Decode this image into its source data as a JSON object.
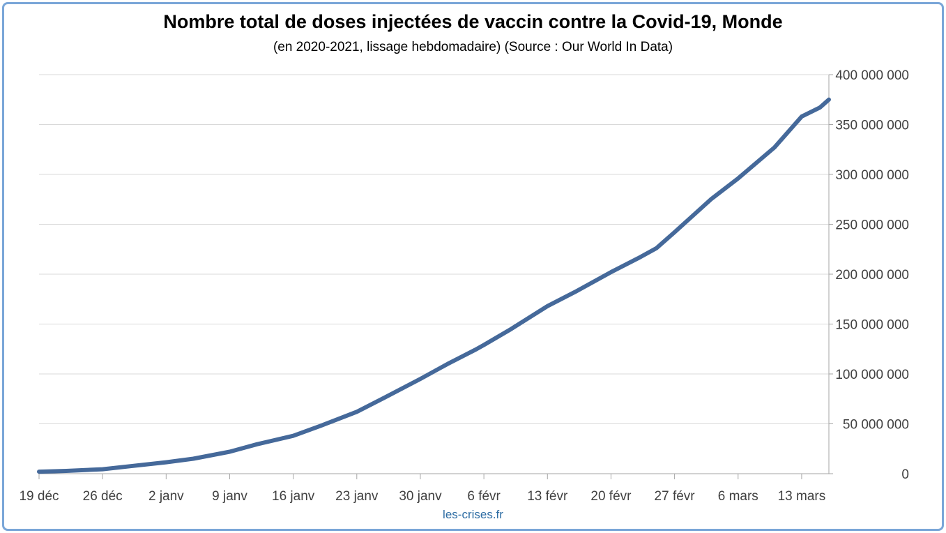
{
  "title": "Nombre total de doses injectées de vaccin contre la Covid-19, Monde",
  "subtitle": "(en 2020-2021, lissage hebdomadaire) (Source : Our World In Data)",
  "credit": "les-crises.fr",
  "colors": {
    "line": "#45699a",
    "grid": "#d9d9d9",
    "axis": "#a6a6a6",
    "frame": "#7aa6d8",
    "credit": "#2e6da4"
  },
  "chart_data": {
    "type": "line",
    "title": "Nombre total de doses injectées de vaccin contre la Covid-19, Monde",
    "subtitle": "(en 2020-2021, lissage hebdomadaire) (Source : Our World In Data)",
    "xlabel": "",
    "ylabel": "",
    "y_axis_side": "right",
    "grid": true,
    "ylim": [
      0,
      400000000
    ],
    "x_ticks": [
      {
        "day": 0,
        "label": "19 déc"
      },
      {
        "day": 7,
        "label": "26 déc"
      },
      {
        "day": 14,
        "label": "2 janv"
      },
      {
        "day": 21,
        "label": "9 janv"
      },
      {
        "day": 28,
        "label": "16 janv"
      },
      {
        "day": 35,
        "label": "23 janv"
      },
      {
        "day": 42,
        "label": "30 janv"
      },
      {
        "day": 49,
        "label": "6 févr"
      },
      {
        "day": 56,
        "label": "13 févr"
      },
      {
        "day": 63,
        "label": "20 févr"
      },
      {
        "day": 70,
        "label": "27 févr"
      },
      {
        "day": 77,
        "label": "6 mars"
      },
      {
        "day": 84,
        "label": "13 mars"
      }
    ],
    "y_ticks": [
      {
        "value": 0,
        "label": "0"
      },
      {
        "value": 50000000,
        "label": "50 000 000"
      },
      {
        "value": 100000000,
        "label": "100 000 000"
      },
      {
        "value": 150000000,
        "label": "150 000 000"
      },
      {
        "value": 200000000,
        "label": "200 000 000"
      },
      {
        "value": 250000000,
        "label": "250 000 000"
      },
      {
        "value": 300000000,
        "label": "300 000 000"
      },
      {
        "value": 350000000,
        "label": "350 000 000"
      },
      {
        "value": 400000000,
        "label": "400 000 000"
      }
    ],
    "x_range": [
      0,
      87
    ],
    "series": [
      {
        "values": [
          [
            0,
            2000000
          ],
          [
            3,
            2800000
          ],
          [
            7,
            4500000
          ],
          [
            10,
            7500000
          ],
          [
            14,
            11500000
          ],
          [
            17,
            15000000
          ],
          [
            21,
            22000000
          ],
          [
            24,
            29500000
          ],
          [
            28,
            38000000
          ],
          [
            31,
            48000000
          ],
          [
            35,
            62000000
          ],
          [
            38,
            76000000
          ],
          [
            42,
            95000000
          ],
          [
            45,
            110000000
          ],
          [
            48,
            124000000
          ],
          [
            49,
            129000000
          ],
          [
            52,
            145000000
          ],
          [
            56,
            168000000
          ],
          [
            59,
            182000000
          ],
          [
            63,
            202000000
          ],
          [
            66,
            216000000
          ],
          [
            68,
            226000000
          ],
          [
            70,
            242000000
          ],
          [
            74,
            275000000
          ],
          [
            77,
            296000000
          ],
          [
            81,
            327000000
          ],
          [
            84,
            358000000
          ],
          [
            86,
            367000000
          ],
          [
            87,
            375000000
          ]
        ]
      }
    ]
  }
}
